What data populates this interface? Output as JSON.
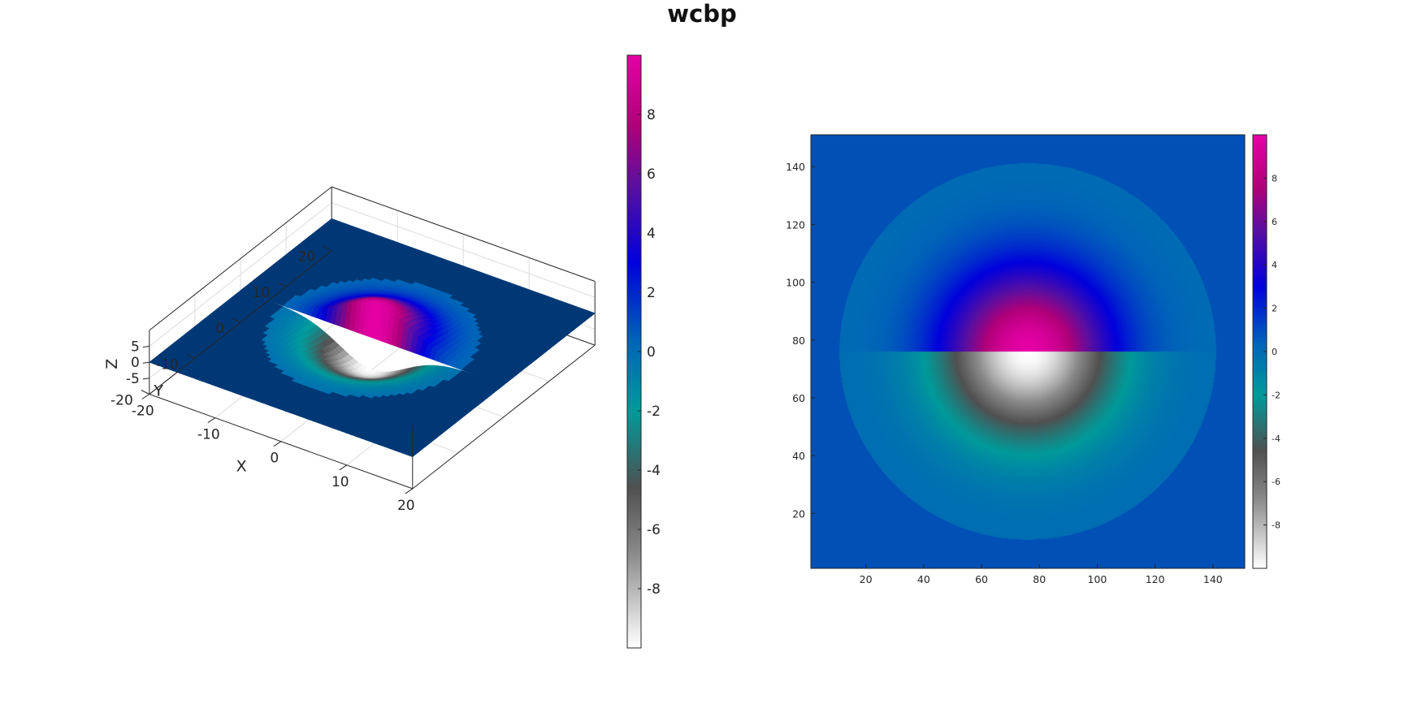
{
  "figure": {
    "title": "wcbp"
  },
  "colormap": {
    "name": "wcbp",
    "stops": [
      [
        0.0,
        "#ffffff"
      ],
      [
        0.16,
        "#8a8a8a"
      ],
      [
        0.27,
        "#505050"
      ],
      [
        0.4,
        "#009a9a"
      ],
      [
        0.52,
        "#0063b8"
      ],
      [
        0.65,
        "#0000dd"
      ],
      [
        0.78,
        "#5a0fa0"
      ],
      [
        0.88,
        "#b00078"
      ],
      [
        1.0,
        "#e600a5"
      ]
    ]
  },
  "chart_data": [
    {
      "type": "surface",
      "view": "3d",
      "xlabel": "X",
      "ylabel": "Y",
      "zlabel": "Z",
      "xlim": [
        -20,
        20
      ],
      "ylim": [
        -20,
        20
      ],
      "zlim": [
        -10,
        10
      ],
      "xticks": [
        "-20",
        "-10",
        "0",
        "10",
        "20"
      ],
      "yticks": [
        "-20",
        "-10",
        "0",
        "10",
        "20"
      ],
      "zticks": [
        "-5",
        "0",
        "5"
      ],
      "grid": true,
      "surface": "z = 10*exp(-(x^2+y^2)/50)*sign(y); peak +10 at (0,+) and trough -10 at (0,-)",
      "colorbar": {
        "range": [
          -10,
          10
        ],
        "ticks": [
          "-8",
          "-6",
          "-4",
          "-2",
          "0",
          "2",
          "4",
          "6",
          "8"
        ]
      }
    },
    {
      "type": "heatmap",
      "view": "2d",
      "xlim": [
        1,
        151
      ],
      "ylim": [
        1,
        151
      ],
      "xticks": [
        "20",
        "40",
        "60",
        "80",
        "100",
        "120",
        "140"
      ],
      "yticks": [
        "20",
        "40",
        "60",
        "80",
        "100",
        "120",
        "140"
      ],
      "center": [
        76,
        76
      ],
      "peak": 10,
      "trough": -10,
      "colorbar": {
        "range": [
          -10,
          10
        ],
        "ticks": [
          "-8",
          "-6",
          "-4",
          "-2",
          "0",
          "2",
          "4",
          "6",
          "8"
        ]
      }
    }
  ]
}
